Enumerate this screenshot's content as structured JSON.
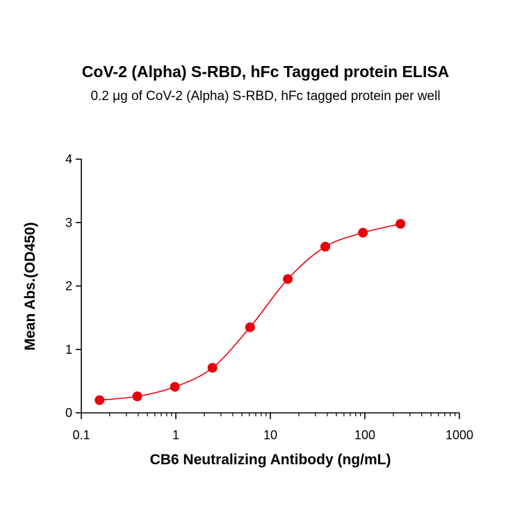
{
  "chart_data": {
    "type": "scatter",
    "title": "CoV-2 (Alpha) S-RBD, hFc Tagged protein ELISA",
    "subtitle": "0.2 μg of CoV-2 (Alpha) S-RBD, hFc tagged protein per well",
    "xlabel": "CB6 Neutralizing Antibody (ng/mL)",
    "ylabel": "Mean Abs.(OD450)",
    "xscale": "log",
    "xlim": [
      0.1,
      1000
    ],
    "ylim": [
      0,
      4
    ],
    "xticks": [
      "0.1",
      "1",
      "10",
      "100",
      "1000"
    ],
    "yticks": [
      "0",
      "1",
      "2",
      "3",
      "4"
    ],
    "grid": false,
    "marker_color": "#e8000b",
    "curve_color": "#e8000b",
    "series": [
      {
        "x": [
          0.156,
          0.391,
          0.977,
          2.44,
          6.1,
          15.3,
          38.1,
          95.4,
          238
        ],
        "y": [
          0.2,
          0.26,
          0.41,
          0.71,
          1.35,
          2.11,
          2.62,
          2.84,
          2.98
        ]
      }
    ]
  }
}
